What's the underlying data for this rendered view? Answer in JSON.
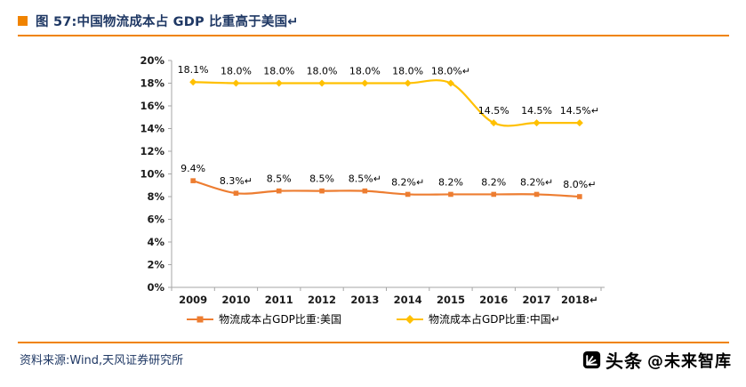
{
  "accent": {
    "orange": "#f08300",
    "navy": "#1f3864"
  },
  "header": {
    "title": "图 57:中国物流成本占 GDP 比重高于美国↵"
  },
  "footer": {
    "source": "资料来源:Wind,天风证券研究所",
    "watermark_bold": "头条",
    "watermark_rest": "@未来智库"
  },
  "chart_data": {
    "type": "line",
    "categories": [
      "2009",
      "2010",
      "2011",
      "2012",
      "2013",
      "2014",
      "2015",
      "2016",
      "2017",
      "2018"
    ],
    "xtick_labels": [
      "2009",
      "2010",
      "2011",
      "2012",
      "2013",
      "2014",
      "2015",
      "2016",
      "2017",
      "2018↵"
    ],
    "series": [
      {
        "name": "物流成本占GDP比重:美国",
        "color": "#ed7d31",
        "marker": "square",
        "values": [
          9.4,
          8.3,
          8.5,
          8.5,
          8.5,
          8.2,
          8.2,
          8.2,
          8.2,
          8.0
        ],
        "labels": [
          "9.4%",
          "8.3%↵",
          "8.5%",
          "8.5%",
          "8.5%↵",
          "8.2%↵",
          "8.2%",
          "8.2%",
          "8.2%↵",
          "8.0%↵"
        ]
      },
      {
        "name": "物流成本占GDP比重:中国↵",
        "color": "#ffc000",
        "marker": "diamond",
        "values": [
          18.1,
          18.0,
          18.0,
          18.0,
          18.0,
          18.0,
          18.0,
          14.5,
          14.5,
          14.5
        ],
        "labels": [
          "18.1%",
          "18.0%",
          "18.0%",
          "18.0%",
          "18.0%",
          "18.0%",
          "18.0%↵",
          "14.5%",
          "14.5%",
          "14.5%↵"
        ]
      }
    ],
    "ylim": [
      0,
      20
    ],
    "ytick_step": 2,
    "ytick_labels": [
      "0%",
      "2%",
      "4%",
      "6%",
      "8%",
      "10%",
      "12%",
      "14%",
      "16%",
      "18%",
      "20%"
    ],
    "grid": false,
    "legend_position": "bottom"
  }
}
